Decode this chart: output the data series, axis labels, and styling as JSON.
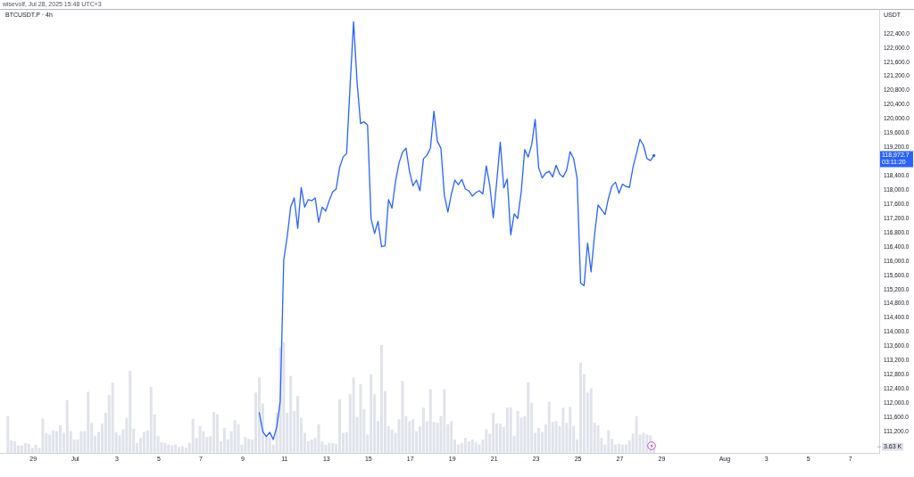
{
  "chart_data": {
    "type": "line",
    "title": "BTCUSDT.P · 4h",
    "ylabel": "USDT",
    "annotations": [
      "wisevolf, Jul 28, 2025 15:48 UTC+3",
      "118,972.7",
      "03:11:20"
    ],
    "x": [
      "2025-06-27T19:00",
      "2025-06-27T23:00",
      "2025-06-28T03:00",
      "2025-06-28T07:00",
      "2025-06-28T11:00",
      "2025-06-28T15:00",
      "2025-06-28T19:00",
      "2025-06-28T23:00",
      "2025-06-29T03:00",
      "2025-06-29T07:00",
      "2025-06-29T11:00",
      "2025-06-29T15:00",
      "2025-06-29T19:00",
      "2025-06-29T23:00",
      "2025-06-30T03:00",
      "2025-06-30T07:00",
      "2025-06-30T11:00",
      "2025-06-30T15:00",
      "2025-06-30T19:00",
      "2025-06-30T23:00",
      "2025-07-01T03:00",
      "2025-07-01T07:00",
      "2025-07-01T11:00",
      "2025-07-01T15:00",
      "2025-07-01T19:00",
      "2025-07-01T23:00",
      "2025-07-02T03:00",
      "2025-07-02T07:00",
      "2025-07-02T11:00",
      "2025-07-02T15:00",
      "2025-07-02T19:00",
      "2025-07-02T23:00",
      "2025-07-03T03:00",
      "2025-07-03T07:00",
      "2025-07-03T11:00",
      "2025-07-03T15:00",
      "2025-07-03T19:00",
      "2025-07-03T23:00",
      "2025-07-04T03:00",
      "2025-07-04T07:00",
      "2025-07-04T11:00",
      "2025-07-04T15:00",
      "2025-07-04T19:00",
      "2025-07-04T23:00",
      "2025-07-05T03:00",
      "2025-07-05T07:00",
      "2025-07-05T11:00",
      "2025-07-05T15:00",
      "2025-07-05T19:00",
      "2025-07-05T23:00",
      "2025-07-06T03:00",
      "2025-07-06T07:00",
      "2025-07-06T11:00",
      "2025-07-06T15:00",
      "2025-07-06T19:00",
      "2025-07-06T23:00",
      "2025-07-07T03:00",
      "2025-07-07T07:00",
      "2025-07-07T11:00",
      "2025-07-07T15:00",
      "2025-07-07T19:00",
      "2025-07-07T23:00",
      "2025-07-08T03:00",
      "2025-07-08T07:00",
      "2025-07-08T11:00",
      "2025-07-08T15:00",
      "2025-07-08T19:00",
      "2025-07-08T23:00",
      "2025-07-09T03:00",
      "2025-07-09T07:00",
      "2025-07-09T11:00",
      "2025-07-09T15:00",
      "2025-07-09T19:00",
      "2025-07-09T23:00",
      "2025-07-10T03:00",
      "2025-07-10T07:00",
      "2025-07-10T11:00",
      "2025-07-10T15:00",
      "2025-07-10T19:00",
      "2025-07-10T23:00",
      "2025-07-11T03:00",
      "2025-07-11T07:00",
      "2025-07-11T11:00",
      "2025-07-11T15:00",
      "2025-07-11T19:00",
      "2025-07-11T23:00",
      "2025-07-12T03:00",
      "2025-07-12T07:00",
      "2025-07-12T11:00",
      "2025-07-12T15:00",
      "2025-07-12T19:00",
      "2025-07-12T23:00",
      "2025-07-13T03:00",
      "2025-07-13T07:00",
      "2025-07-13T11:00",
      "2025-07-13T15:00",
      "2025-07-13T19:00",
      "2025-07-13T23:00",
      "2025-07-14T03:00",
      "2025-07-14T07:00",
      "2025-07-14T11:00",
      "2025-07-14T15:00",
      "2025-07-14T19:00",
      "2025-07-14T23:00",
      "2025-07-15T03:00",
      "2025-07-15T07:00",
      "2025-07-15T11:00",
      "2025-07-15T15:00",
      "2025-07-15T19:00",
      "2025-07-15T23:00",
      "2025-07-16T03:00",
      "2025-07-16T07:00",
      "2025-07-16T11:00",
      "2025-07-16T15:00",
      "2025-07-16T19:00",
      "2025-07-16T23:00",
      "2025-07-17T03:00",
      "2025-07-17T07:00",
      "2025-07-17T11:00",
      "2025-07-17T15:00",
      "2025-07-17T19:00",
      "2025-07-17T23:00",
      "2025-07-18T03:00",
      "2025-07-18T07:00",
      "2025-07-18T11:00",
      "2025-07-18T15:00",
      "2025-07-18T19:00",
      "2025-07-18T23:00",
      "2025-07-19T03:00",
      "2025-07-19T07:00",
      "2025-07-19T11:00",
      "2025-07-19T15:00",
      "2025-07-19T19:00",
      "2025-07-19T23:00",
      "2025-07-20T03:00",
      "2025-07-20T07:00",
      "2025-07-20T11:00",
      "2025-07-20T15:00",
      "2025-07-20T19:00",
      "2025-07-20T23:00",
      "2025-07-21T03:00",
      "2025-07-21T07:00",
      "2025-07-21T11:00",
      "2025-07-21T15:00",
      "2025-07-21T19:00",
      "2025-07-21T23:00",
      "2025-07-22T03:00",
      "2025-07-22T07:00",
      "2025-07-22T11:00",
      "2025-07-22T15:00",
      "2025-07-22T19:00",
      "2025-07-22T23:00",
      "2025-07-23T03:00",
      "2025-07-23T07:00",
      "2025-07-23T11:00",
      "2025-07-23T15:00",
      "2025-07-23T19:00",
      "2025-07-23T23:00",
      "2025-07-24T03:00",
      "2025-07-24T07:00",
      "2025-07-24T11:00",
      "2025-07-24T15:00",
      "2025-07-24T19:00",
      "2025-07-24T23:00",
      "2025-07-25T03:00",
      "2025-07-25T07:00",
      "2025-07-25T11:00",
      "2025-07-25T15:00",
      "2025-07-25T19:00",
      "2025-07-25T23:00",
      "2025-07-26T03:00",
      "2025-07-26T07:00",
      "2025-07-26T11:00",
      "2025-07-26T15:00",
      "2025-07-26T19:00",
      "2025-07-26T23:00",
      "2025-07-27T03:00",
      "2025-07-27T07:00",
      "2025-07-27T11:00",
      "2025-07-27T15:00",
      "2025-07-27T19:00",
      "2025-07-27T23:00",
      "2025-07-28T03:00",
      "2025-07-28T07:00",
      "2025-07-28T11:00",
      "2025-07-28T15:00"
    ],
    "series": [
      {
        "type": "bar",
        "axis": "y2",
        "color": "#e0e3eb",
        "values": [
          22,
          7.5,
          7,
          4.5,
          4.5,
          6,
          5.5,
          3,
          5,
          3,
          20.5,
          12,
          11,
          13.5,
          13,
          16.5,
          12,
          31.5,
          13,
          8,
          8,
          13,
          13,
          36.5,
          18,
          10,
          12.5,
          17.5,
          24,
          34.5,
          42,
          12.5,
          10.5,
          14,
          21,
          49,
          14.5,
          6,
          9,
          12.5,
          13.5,
          39.5,
          23,
          10,
          6.5,
          6,
          5,
          4.5,
          5,
          3.5,
          4,
          3,
          6,
          20.5,
          9,
          16,
          13,
          9.5,
          10,
          24.5,
          23,
          7,
          15,
          8,
          13,
          19.5,
          17,
          5,
          9.5,
          8.5,
          8,
          36,
          45,
          29.5,
          10,
          9,
          5,
          24,
          63,
          66,
          24,
          46,
          25,
          34,
          21,
          12,
          7,
          8,
          9,
          17,
          7,
          5,
          6,
          6,
          5.5,
          32,
          12,
          12.5,
          35,
          45,
          21.5,
          41,
          26,
          11,
          47,
          35,
          19,
          64.5,
          37,
          16,
          14,
          12,
          20,
          43,
          22,
          19,
          20,
          13,
          16,
          27,
          19,
          38,
          18.5,
          18,
          22,
          38,
          17,
          19,
          8,
          5,
          6,
          9,
          7,
          8,
          6.5,
          5,
          8,
          14,
          11.5,
          24,
          17.5,
          17.5,
          15.5,
          27,
          27,
          10,
          25,
          21,
          22,
          42,
          30,
          12,
          15,
          12.5,
          17,
          30.5,
          18.5,
          19,
          16,
          27,
          18,
          27.5,
          16,
          8,
          54,
          47,
          36,
          38.5,
          18,
          16.5,
          9,
          5,
          13.5,
          8.5,
          5,
          5.5,
          5,
          5,
          7.5,
          11.5,
          22,
          11,
          12,
          11,
          10.5,
          3.63
        ]
      },
      {
        "type": "line",
        "color": "#2962ff",
        "values": [
          null,
          null,
          null,
          null,
          null,
          null,
          null,
          null,
          null,
          null,
          null,
          null,
          null,
          null,
          null,
          null,
          null,
          null,
          null,
          null,
          null,
          null,
          null,
          null,
          null,
          null,
          null,
          null,
          null,
          null,
          null,
          null,
          null,
          null,
          null,
          null,
          null,
          null,
          null,
          null,
          null,
          null,
          null,
          null,
          null,
          null,
          null,
          null,
          null,
          null,
          null,
          null,
          null,
          null,
          null,
          null,
          null,
          null,
          null,
          null,
          null,
          null,
          null,
          null,
          null,
          null,
          null,
          null,
          null,
          null,
          null,
          null,
          111730,
          111200,
          111060,
          111180,
          110980,
          111330,
          112060,
          116030,
          116700,
          117530,
          117780,
          116920,
          118070,
          117520,
          117730,
          117700,
          117780,
          117090,
          117520,
          117410,
          117700,
          117950,
          118030,
          118640,
          118930,
          119030,
          120950,
          122740,
          121030,
          119870,
          119920,
          119830,
          117200,
          116780,
          117120,
          116410,
          116430,
          117730,
          117490,
          118240,
          118760,
          119060,
          119180,
          118530,
          118120,
          118280,
          117980,
          118880,
          118980,
          119180,
          120220,
          119370,
          119180,
          117850,
          117380,
          117890,
          118280,
          118150,
          118300,
          118030,
          117980,
          117830,
          117930,
          117980,
          117890,
          118680,
          118130,
          117220,
          118250,
          119350,
          118060,
          118310,
          116740,
          117330,
          117200,
          117950,
          119140,
          118930,
          119280,
          119990,
          118630,
          118340,
          118480,
          118530,
          118370,
          118700,
          118450,
          118370,
          118560,
          119080,
          118890,
          118330,
          115380,
          115310,
          116510,
          115700,
          116740,
          117580,
          117450,
          117310,
          117780,
          118120,
          118220,
          117910,
          118170,
          118100,
          118080,
          118640,
          119030,
          119430,
          119260,
          118890,
          118830,
          118972.7
        ]
      }
    ],
    "xlim": [
      "2025-06-27T10:00",
      "2025-08-08T09:00"
    ],
    "xticks": [
      {
        "value": "2025-06-29",
        "label": "29"
      },
      {
        "value": "2025-07-01",
        "label": "Jul"
      },
      {
        "value": "2025-07-03",
        "label": "3"
      },
      {
        "value": "2025-07-05",
        "label": "5"
      },
      {
        "value": "2025-07-07",
        "label": "7"
      },
      {
        "value": "2025-07-09",
        "label": "9"
      },
      {
        "value": "2025-07-11",
        "label": "11"
      },
      {
        "value": "2025-07-13",
        "label": "13"
      },
      {
        "value": "2025-07-15",
        "label": "15"
      },
      {
        "value": "2025-07-17",
        "label": "17"
      },
      {
        "value": "2025-07-19",
        "label": "19"
      },
      {
        "value": "2025-07-21",
        "label": "21"
      },
      {
        "value": "2025-07-23",
        "label": "23"
      },
      {
        "value": "2025-07-25",
        "label": "25"
      },
      {
        "value": "2025-07-27",
        "label": "27"
      },
      {
        "value": "2025-07-29",
        "label": "29"
      },
      {
        "value": "2025-08-01",
        "label": "Aug"
      },
      {
        "value": "2025-08-03",
        "label": "3"
      },
      {
        "value": "2025-08-05",
        "label": "5"
      },
      {
        "value": "2025-08-07",
        "label": "7"
      }
    ],
    "ylim": [
      110600,
      123100
    ],
    "yticks": [
      {
        "value": 111200,
        "label": "111,200.0"
      },
      {
        "value": 111600,
        "label": "111,600.0"
      },
      {
        "value": 112000,
        "label": "112,000.0"
      },
      {
        "value": 112400,
        "label": "112,400.0"
      },
      {
        "value": 112800,
        "label": "112,800.0"
      },
      {
        "value": 113200,
        "label": "113,200.0"
      },
      {
        "value": 113600,
        "label": "113,600.0"
      },
      {
        "value": 114000,
        "label": "114,000.0"
      },
      {
        "value": 114400,
        "label": "114,400.0"
      },
      {
        "value": 114800,
        "label": "114,800.0"
      },
      {
        "value": 115200,
        "label": "115,200.0"
      },
      {
        "value": 115600,
        "label": "115,600.0"
      },
      {
        "value": 116000,
        "label": "116,000.0"
      },
      {
        "value": 116400,
        "label": "116,400.0"
      },
      {
        "value": 116800,
        "label": "116,800.0"
      },
      {
        "value": 117200,
        "label": "117,200.0"
      },
      {
        "value": 117600,
        "label": "117,600.0"
      },
      {
        "value": 118000,
        "label": "118,000.0"
      },
      {
        "value": 118400,
        "label": "118,400.0"
      },
      {
        "value": 119200,
        "label": "119,200.0"
      },
      {
        "value": 119600,
        "label": "119,600.0"
      },
      {
        "value": 120000,
        "label": "120,000.0"
      },
      {
        "value": 120400,
        "label": "120,400.0"
      },
      {
        "value": 120800,
        "label": "120,800.0"
      },
      {
        "value": 121200,
        "label": "121,200.0"
      },
      {
        "value": 121600,
        "label": "121,600.0"
      },
      {
        "value": 122000,
        "label": "122,000.0"
      },
      {
        "value": 122400,
        "label": "122,400.0"
      }
    ],
    "y2lim": [
      0,
      265
    ],
    "y2ticks": [
      {
        "value": 3.63,
        "label": "3.63 K"
      }
    ]
  }
}
